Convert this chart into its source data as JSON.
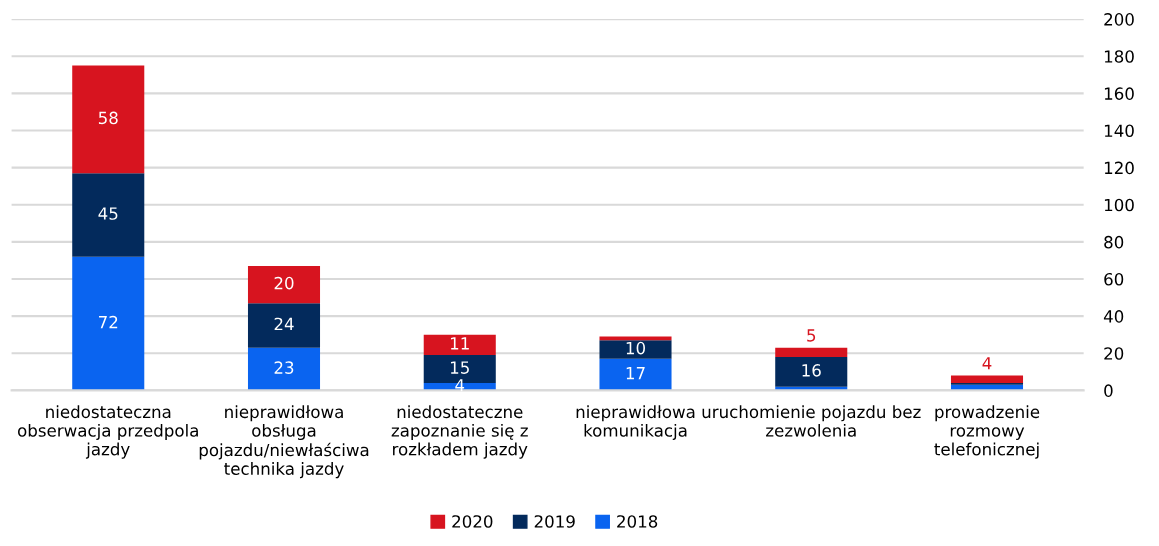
{
  "chart_data": {
    "type": "bar",
    "stacked": true,
    "categories": [
      "niedostateczna obserwacja przedpola jazdy",
      "nieprawidłowa obsługa pojazdu/niewłaściwa technika jazdy",
      "niedostateczne zapoznanie się z rozkładem jazdy",
      "nieprawidłowa komunikacja",
      "uruchomienie pojazdu bez zezwolenia",
      "prowadzenie rozmowy telefonicznej"
    ],
    "series": [
      {
        "name": "2018",
        "color": "#0a64f0",
        "values": [
          72,
          23,
          4,
          17,
          2,
          3
        ],
        "value_labels": [
          "72",
          "23",
          "4",
          "17",
          null,
          null
        ]
      },
      {
        "name": "2019",
        "color": "#032a5c",
        "values": [
          45,
          24,
          15,
          10,
          16,
          1
        ],
        "value_labels": [
          "45",
          "24",
          "15",
          "10",
          "16",
          null
        ]
      },
      {
        "name": "2020",
        "color": "#d7141f",
        "values": [
          58,
          20,
          11,
          2,
          5,
          4
        ],
        "value_labels": [
          "58",
          "20",
          "11",
          null,
          "5",
          "4"
        ]
      }
    ],
    "ylim": [
      0,
      200
    ],
    "yticks": [
      0,
      20,
      40,
      60,
      80,
      100,
      120,
      140,
      160,
      180,
      200
    ],
    "grid": "y",
    "legend": "bottom"
  }
}
